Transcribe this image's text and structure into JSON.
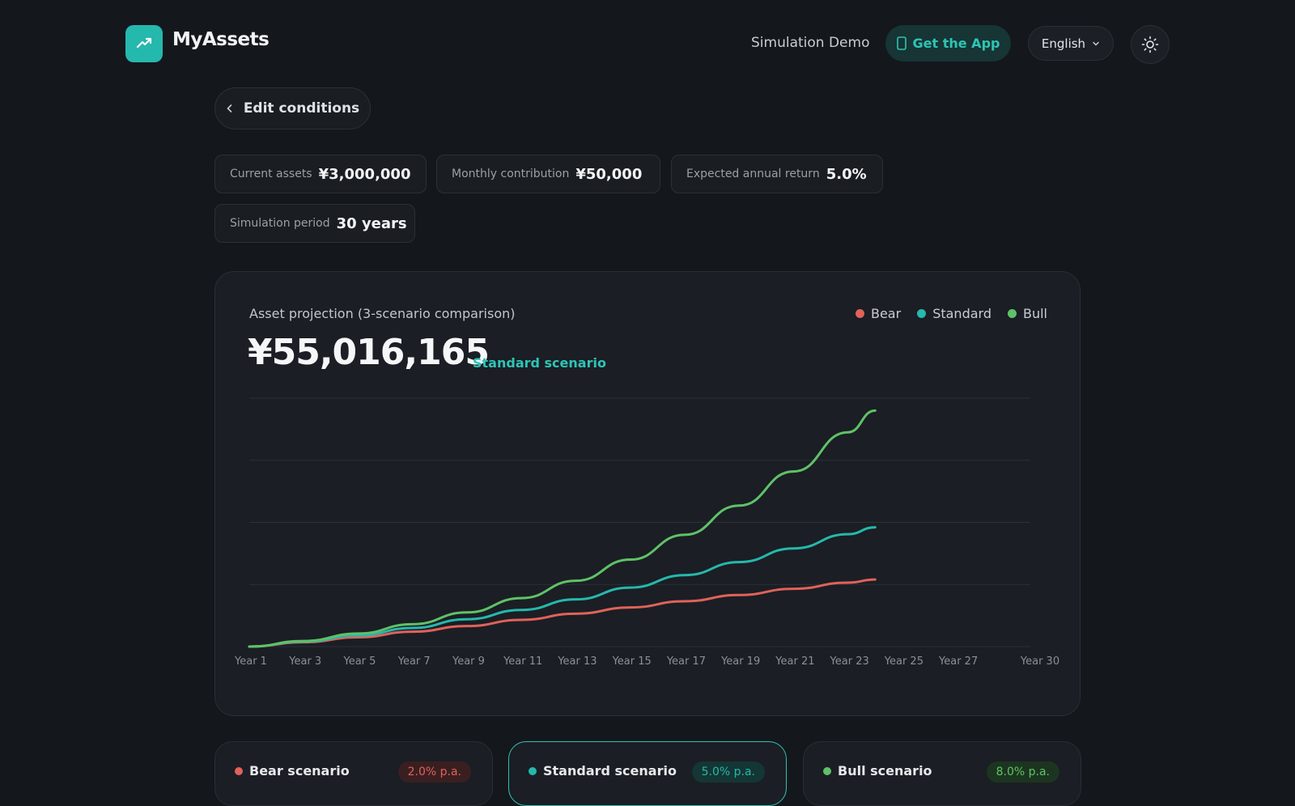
{
  "header": {
    "brand": "MyAssets",
    "nav_link": "Simulation Demo",
    "get_app": "Get the App",
    "language": "English"
  },
  "edit_button": "Edit conditions",
  "conditions": [
    {
      "label": "Current assets",
      "value": "¥3,000,000"
    },
    {
      "label": "Monthly contribution",
      "value": "¥50,000"
    },
    {
      "label": "Expected annual return",
      "value": "5.0%"
    },
    {
      "label": "Simulation period",
      "value": "30 years"
    }
  ],
  "chart_card": {
    "title": "Asset projection (3-scenario comparison)",
    "total": "¥55,016,165",
    "total_label": "Standard scenario",
    "legend": [
      {
        "name": "Bear",
        "color": "#e0625a"
      },
      {
        "name": "Standard",
        "color": "#25b8ad"
      },
      {
        "name": "Bull",
        "color": "#5fc267"
      }
    ]
  },
  "chart_data": {
    "type": "line",
    "x_ticks": [
      "Year 1",
      "Year 3",
      "Year 5",
      "Year 7",
      "Year 9",
      "Year 11",
      "Year 13",
      "Year 15",
      "Year 17",
      "Year 19",
      "Year 21",
      "Year 23",
      "Year 25",
      "Year 27",
      "Year 30"
    ],
    "x_range": [
      1,
      30
    ],
    "grid": true,
    "legend_position": "top-right",
    "series": [
      {
        "name": "Bear",
        "color": "#e0625a",
        "x": [
          1,
          3,
          5,
          7,
          9,
          11,
          13,
          15,
          17,
          19,
          21,
          23,
          24
        ],
        "values": [
          0,
          0.07,
          0.15,
          0.24,
          0.33,
          0.43,
          0.53,
          0.63,
          0.73,
          0.83,
          0.93,
          1.03,
          1.08
        ]
      },
      {
        "name": "Standard",
        "color": "#25b8ad",
        "x": [
          1,
          3,
          5,
          7,
          9,
          11,
          13,
          15,
          17,
          19,
          21,
          23,
          24
        ],
        "values": [
          0,
          0.08,
          0.18,
          0.3,
          0.44,
          0.59,
          0.76,
          0.95,
          1.15,
          1.36,
          1.58,
          1.81,
          1.92
        ]
      },
      {
        "name": "Bull",
        "color": "#5fc267",
        "x": [
          1,
          3,
          5,
          7,
          9,
          11,
          13,
          15,
          17,
          19,
          21,
          23,
          24
        ],
        "values": [
          0,
          0.09,
          0.21,
          0.36,
          0.55,
          0.78,
          1.06,
          1.4,
          1.8,
          2.27,
          2.82,
          3.45,
          3.8
        ]
      }
    ],
    "gridline_count": 5
  },
  "scenarios": [
    {
      "name": "Bear scenario",
      "rate": "2.0% p.a.",
      "color": "#e0625a",
      "badge_bg": "#3a1f21"
    },
    {
      "name": "Standard scenario",
      "rate": "5.0% p.a.",
      "color": "#25b8ad",
      "badge_bg": "#143634"
    },
    {
      "name": "Bull scenario",
      "rate": "8.0% p.a.",
      "color": "#5fc267",
      "badge_bg": "#1c3520"
    }
  ]
}
